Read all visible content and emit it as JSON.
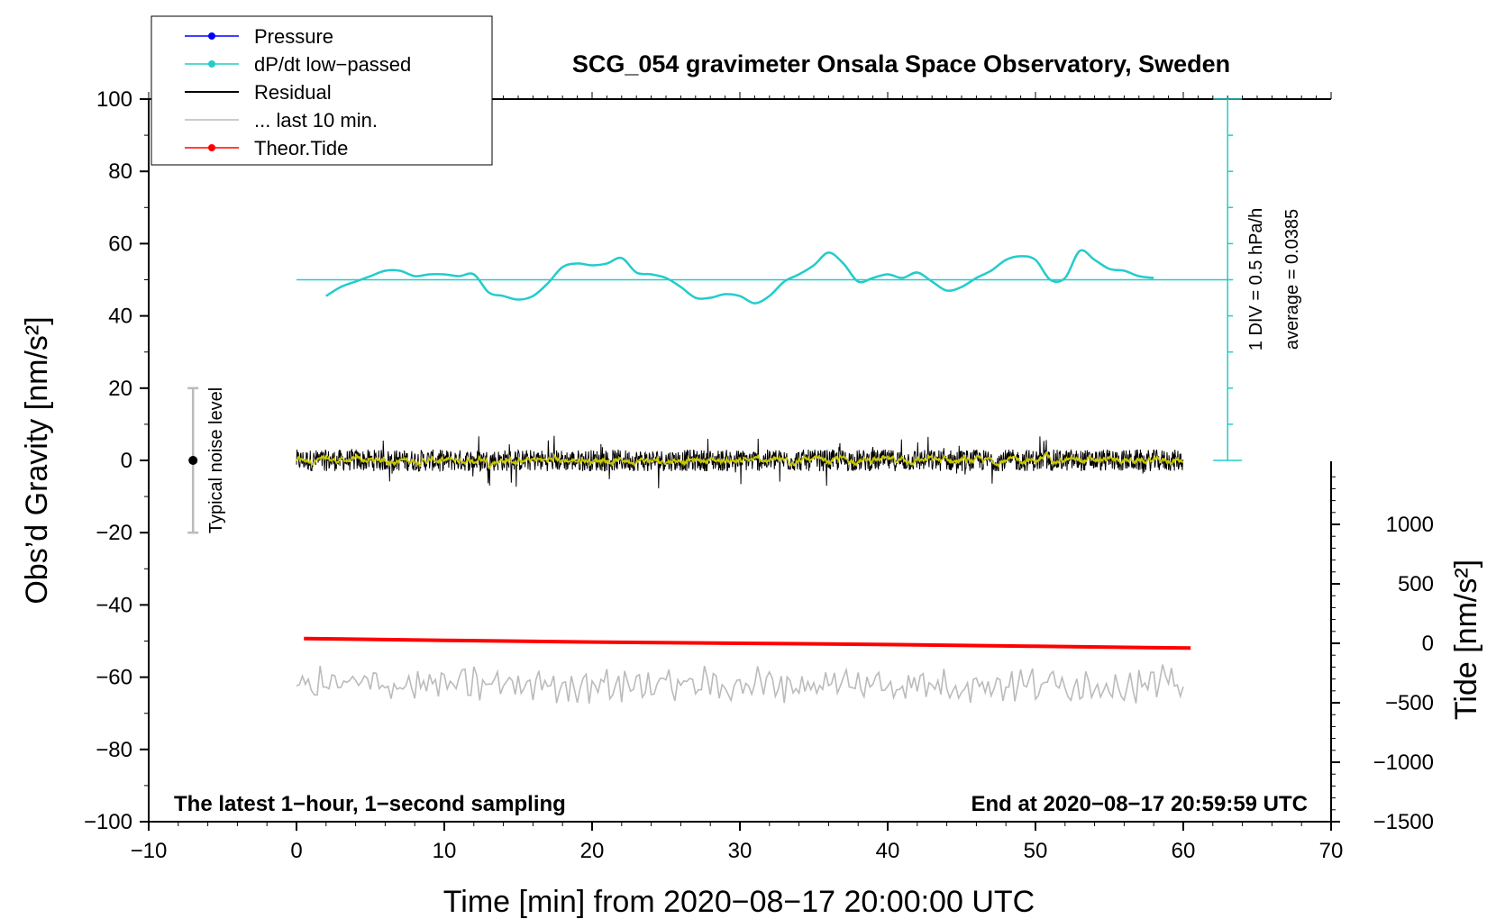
{
  "chart_data": {
    "type": "line",
    "title": "SCG_054 gravimeter Onsala Space Observatory, Sweden",
    "xlabel": "Time [min] from 2020−08−17 20:00:00 UTC",
    "ylabel_left": "Obs’d Gravity [nm/s²]",
    "ylabel_right": "Tide [nm/s²]",
    "xlim": [
      -10,
      70
    ],
    "ylim_left": [
      -100,
      100
    ],
    "ylim_right": [
      -1500,
      1500
    ],
    "x_ticks": [
      "−10",
      "0",
      "10",
      "20",
      "30",
      "40",
      "50",
      "60",
      "70"
    ],
    "x_tick_values": [
      -10,
      0,
      10,
      20,
      30,
      40,
      50,
      60,
      70
    ],
    "y_ticks_left": [
      "100",
      "80",
      "60",
      "40",
      "20",
      "0",
      "−20",
      "−40",
      "−60",
      "−80",
      "−100"
    ],
    "y_tick_values_left": [
      100,
      80,
      60,
      40,
      20,
      0,
      -20,
      -40,
      -60,
      -80,
      -100
    ],
    "y_ticks_right": [
      "1000",
      "500",
      "0",
      "−500",
      "−1000",
      "−1500"
    ],
    "y_tick_values_right": [
      1000,
      500,
      0,
      -500,
      -1000,
      -1500
    ],
    "legend": [
      {
        "label": "Pressure",
        "color": "#0000ff",
        "marker": true
      },
      {
        "label": "dP/dt low−passed",
        "color": "#22cccc",
        "marker": true
      },
      {
        "label": "Residual",
        "color": "#000000",
        "marker": false
      },
      {
        "label": "... last 10 min.",
        "color": "#bbbbbb",
        "marker": false
      },
      {
        "label": "Theor.Tide",
        "color": "#ff0000",
        "marker": true
      }
    ],
    "annotations": {
      "bottom_left": "The latest 1−hour, 1−second sampling",
      "bottom_right": "End at 2020−08−17 20:59:59 UTC",
      "noise_label": "Typical noise level",
      "div_scale": "1 DIV = 0.5 hPa/h",
      "average": "average = 0.0385"
    },
    "noise_bar": {
      "x": -7,
      "center": 0,
      "low": -20,
      "high": 20
    },
    "pressure_rate_scale": {
      "x": 63,
      "from": 0,
      "to": 100,
      "divisions": 10
    },
    "series": [
      {
        "name": "dP/dt low−passed",
        "color": "#22cccc",
        "baseline": 50,
        "x": [
          2,
          3,
          4,
          5,
          6,
          7,
          8,
          9,
          10,
          11,
          12,
          13,
          14,
          15,
          16,
          17,
          18,
          19,
          20,
          21,
          22,
          23,
          24,
          25,
          26,
          27,
          28,
          29,
          30,
          31,
          32,
          33,
          34,
          35,
          36,
          37,
          38,
          39,
          40,
          41,
          42,
          43,
          44,
          45,
          46,
          47,
          48,
          49,
          50,
          51,
          52,
          53,
          54,
          55,
          56,
          57,
          58
        ],
        "y": [
          45.5,
          48,
          49.5,
          51,
          52.5,
          52.5,
          51,
          51.5,
          51.5,
          51,
          51.5,
          46.5,
          45.5,
          44.5,
          45.5,
          49,
          53.5,
          54.5,
          54,
          54.5,
          56,
          52,
          51.5,
          50.5,
          48,
          45,
          45,
          46,
          45.5,
          43.5,
          45.5,
          49.5,
          51.5,
          54,
          57.5,
          54.5,
          49.5,
          50.5,
          51.5,
          50.5,
          52,
          49.5,
          47,
          48,
          50.5,
          52.5,
          55.5,
          56.5,
          55.5,
          50,
          50.5,
          58,
          55.5,
          53,
          52.5,
          51,
          50.5
        ]
      },
      {
        "name": "Theor.Tide",
        "color": "#ff0000",
        "axis": "right",
        "x": [
          0.5,
          10,
          20,
          30,
          40,
          50,
          60.5
        ],
        "y": [
          40,
          25,
          10,
          0,
          -10,
          -25,
          -40
        ]
      }
    ],
    "residual": {
      "x_start": 0,
      "x_end": 60,
      "amplitude": 3,
      "extreme_amplitude": 8,
      "color": "#000000",
      "filtered_color": "#c8c800"
    },
    "last_10_min": {
      "x_start": 0,
      "x_end": 60,
      "offset": -62,
      "amplitude": 3.5,
      "color": "#bbbbbb"
    }
  }
}
